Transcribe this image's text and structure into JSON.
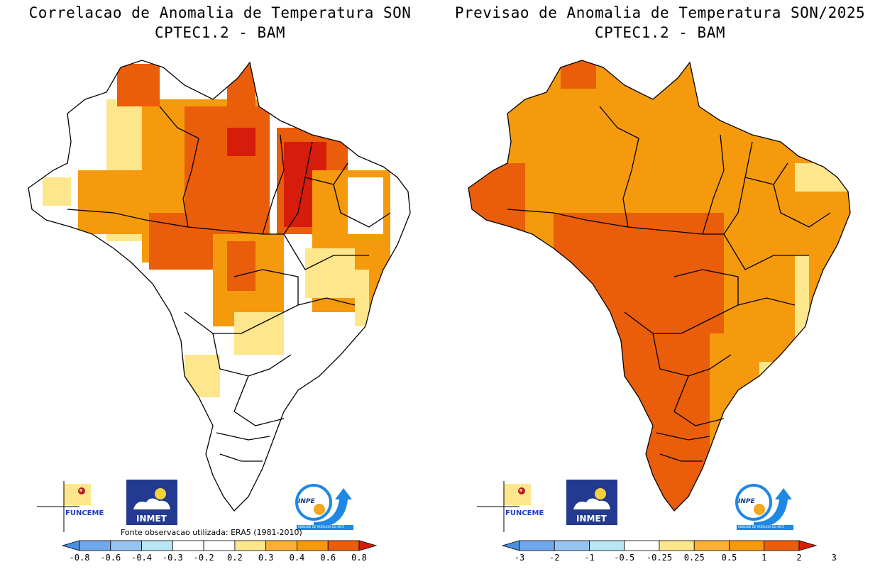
{
  "left": {
    "title_line1": "Correlacao de Anomalia de Temperatura SON",
    "title_line2": "CPTEC1.2 - BAM",
    "source_note": "Fonte observacao utilizada: ERA5 (1981-2010)",
    "colorbar": {
      "colors": [
        "#4b8fe0",
        "#6fa8ec",
        "#97c3f0",
        "#b8e6f5",
        "#ffffff",
        "#ffffff",
        "#fde68c",
        "#fbb035",
        "#f59a0c",
        "#ea5d0a",
        "#d61d0b"
      ],
      "ticks": [
        "-0.8",
        "-0.6",
        "-0.4",
        "-0.3",
        "-0.2",
        "0.2",
        "0.3",
        "0.4",
        "0.6",
        "0.8"
      ]
    }
  },
  "right": {
    "title_line1": "Previsao de Anomalia de Temperatura SON/2025",
    "title_line2": "CPTEC1.2 - BAM",
    "colorbar": {
      "colors": [
        "#4b8fe0",
        "#6fa8ec",
        "#97c3f0",
        "#b8e6f5",
        "#ffffff",
        "#fde68c",
        "#fbb035",
        "#f59a0c",
        "#ea5d0a",
        "#d61d0b"
      ],
      "ticks": [
        "-3",
        "-2",
        "-1",
        "-0.5",
        "-0.25",
        "0.25",
        "0.5",
        "1",
        "2",
        "3"
      ]
    }
  },
  "logos": {
    "funceme": "FUNCEME",
    "inmet": "INMET",
    "inpe": "INPE",
    "inpe_sub": "UNIDADE DE PESQUISA DO MCTI"
  }
}
